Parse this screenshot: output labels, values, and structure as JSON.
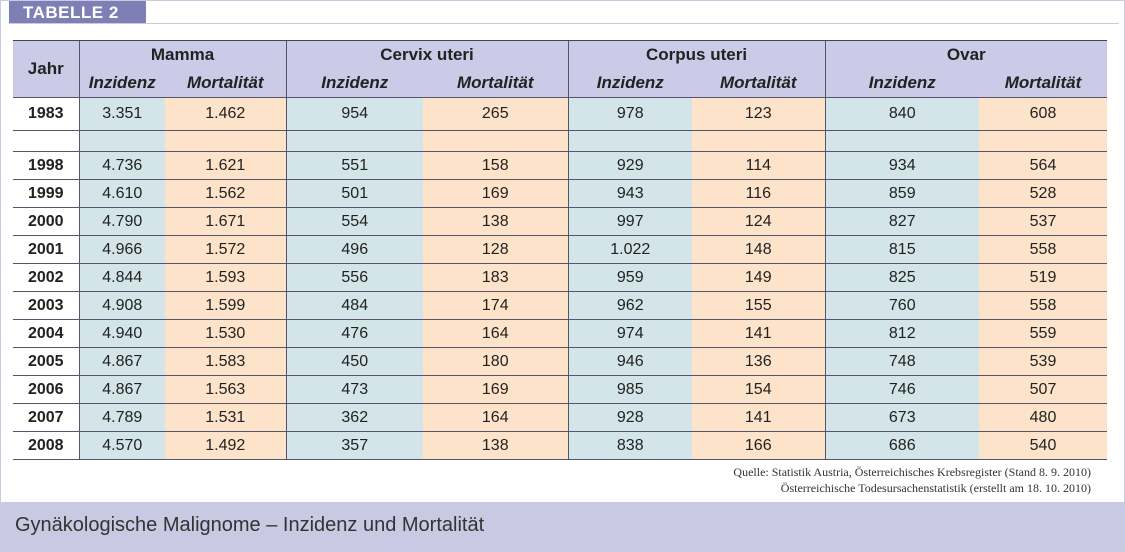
{
  "tag": "TABELLE 2",
  "table": {
    "year_header": "Jahr",
    "groups": [
      "Mamma",
      "Cervix uteri",
      "Corpus uteri",
      "Ovar"
    ],
    "sub_incidence": "Inzidenz",
    "sub_mortality": "Mortalität",
    "rows": [
      {
        "year": "1983",
        "values": [
          "3.351",
          "1.462",
          "954",
          "265",
          "978",
          "123",
          "840",
          "608"
        ]
      },
      {
        "year": "",
        "values": [
          "",
          "",
          "",
          "",
          "",
          "",
          "",
          ""
        ]
      },
      {
        "year": "1998",
        "values": [
          "4.736",
          "1.621",
          "551",
          "158",
          "929",
          "114",
          "934",
          "564"
        ]
      },
      {
        "year": "1999",
        "values": [
          "4.610",
          "1.562",
          "501",
          "169",
          "943",
          "116",
          "859",
          "528"
        ]
      },
      {
        "year": "2000",
        "values": [
          "4.790",
          "1.671",
          "554",
          "138",
          "997",
          "124",
          "827",
          "537"
        ]
      },
      {
        "year": "2001",
        "values": [
          "4.966",
          "1.572",
          "496",
          "128",
          "1.022",
          "148",
          "815",
          "558"
        ]
      },
      {
        "year": "2002",
        "values": [
          "4.844",
          "1.593",
          "556",
          "183",
          "959",
          "149",
          "825",
          "519"
        ]
      },
      {
        "year": "2003",
        "values": [
          "4.908",
          "1.599",
          "484",
          "174",
          "962",
          "155",
          "760",
          "558"
        ]
      },
      {
        "year": "2004",
        "values": [
          "4.940",
          "1.530",
          "476",
          "164",
          "974",
          "141",
          "812",
          "559"
        ]
      },
      {
        "year": "2005",
        "values": [
          "4.867",
          "1.583",
          "450",
          "180",
          "946",
          "136",
          "748",
          "539"
        ]
      },
      {
        "year": "2006",
        "values": [
          "4.867",
          "1.563",
          "473",
          "169",
          "985",
          "154",
          "746",
          "507"
        ]
      },
      {
        "year": "2007",
        "values": [
          "4.789",
          "1.531",
          "362",
          "164",
          "928",
          "141",
          "673",
          "480"
        ]
      },
      {
        "year": "2008",
        "values": [
          "4.570",
          "1.492",
          "357",
          "138",
          "838",
          "166",
          "686",
          "540"
        ]
      }
    ]
  },
  "source_line1": "Quelle: Statistik Austria, Österreichisches Krebsregister (Stand 8. 9. 2010)",
  "source_line2": "Österreichische Todesursachenstatistik (erstellt am 18. 10. 2010)",
  "caption": "Gynäkologische Malignome – Inzidenz und Mortalität",
  "colors": {
    "header_bg": "#cbcbe8",
    "incidence_bg": "#d3e5e8",
    "mortality_bg": "#fde3c9",
    "tag_bg": "#7e80b5",
    "footer_bg": "#c9c9e4"
  }
}
